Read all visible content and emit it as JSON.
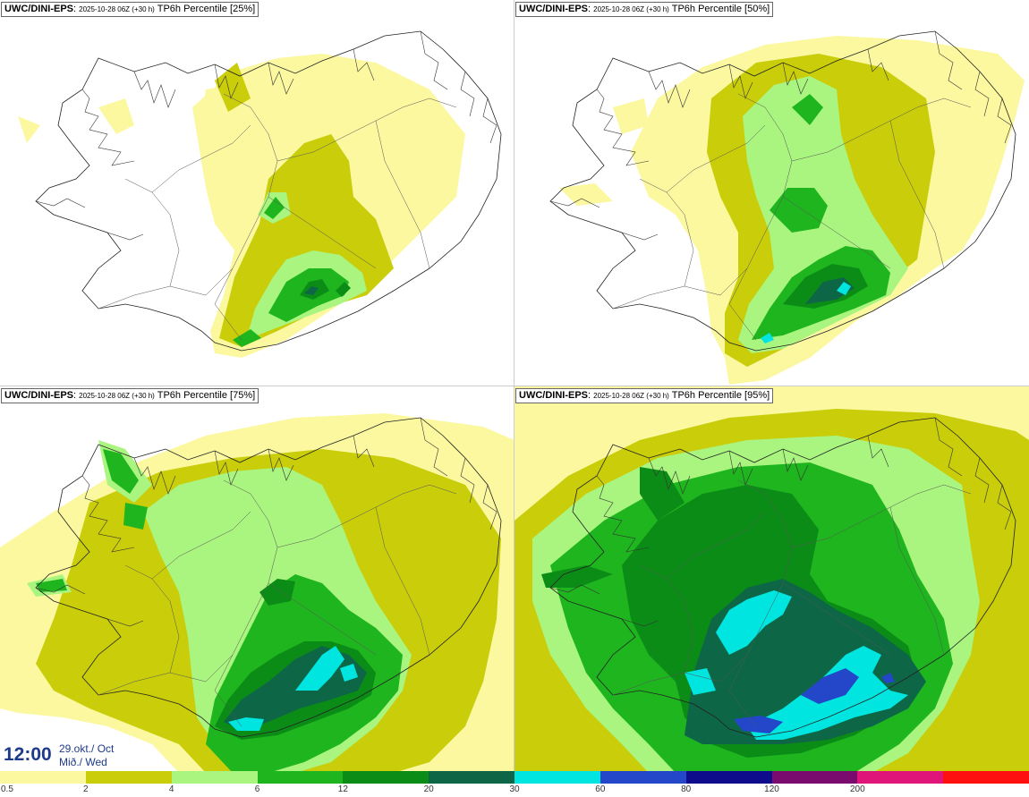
{
  "panels": [
    {
      "model": "UWC/DINI-EPS",
      "run": "2025-10-28 06Z (+30 h)",
      "product": "TP6h Percentile [25%]"
    },
    {
      "model": "UWC/DINI-EPS",
      "run": "2025-10-28 06Z (+30 h)",
      "product": "TP6h Percentile [50%]"
    },
    {
      "model": "UWC/DINI-EPS",
      "run": "2025-10-28 06Z (+30 h)",
      "product": "TP6h Percentile [75%]"
    },
    {
      "model": "UWC/DINI-EPS",
      "run": "2025-10-28 06Z (+30 h)",
      "product": "TP6h Percentile [95%]"
    }
  ],
  "valid_time": {
    "time": "12:00",
    "date": "29.okt./ Oct",
    "weekday": "Mið./ Wed"
  },
  "colorbar": {
    "colors": [
      "#fbf8a0",
      "#c9cd0a",
      "#aaf57f",
      "#1fb51f",
      "#0b8c16",
      "#0d6747",
      "#00e5e0",
      "#2347c8",
      "#0e0c8a",
      "#7a0a6e",
      "#e0157a",
      "#ff1010"
    ],
    "ticks": [
      "0.5",
      "2",
      "4",
      "6",
      "12",
      "20",
      "30",
      "60",
      "80",
      "120",
      "200"
    ]
  }
}
